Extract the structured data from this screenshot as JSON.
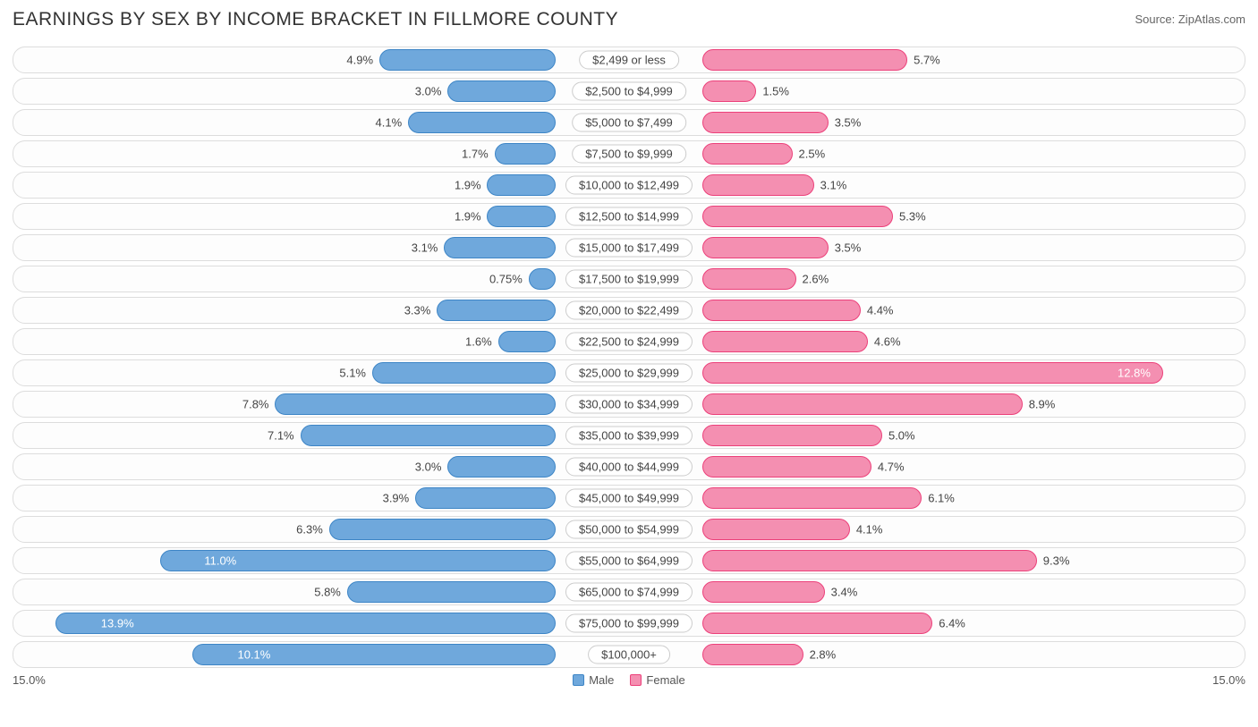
{
  "title": "EARNINGS BY SEX BY INCOME BRACKET IN FILLMORE COUNTY",
  "source": "Source: ZipAtlas.com",
  "axis_max_label": "15.0%",
  "axis_max": 15.0,
  "legend": {
    "male": "Male",
    "female": "Female"
  },
  "colors": {
    "male_fill": "#6fa8dc",
    "male_border": "#3d85c6",
    "female_fill": "#f48fb1",
    "female_border": "#ec407a",
    "row_border": "#dddddd",
    "text": "#444444"
  },
  "rows": [
    {
      "label": "$2,499 or less",
      "male": 4.9,
      "female": 5.7
    },
    {
      "label": "$2,500 to $4,999",
      "male": 3.0,
      "female": 1.5
    },
    {
      "label": "$5,000 to $7,499",
      "male": 4.1,
      "female": 3.5
    },
    {
      "label": "$7,500 to $9,999",
      "male": 1.7,
      "female": 2.5
    },
    {
      "label": "$10,000 to $12,499",
      "male": 1.9,
      "female": 3.1
    },
    {
      "label": "$12,500 to $14,999",
      "male": 1.9,
      "female": 5.3
    },
    {
      "label": "$15,000 to $17,499",
      "male": 3.1,
      "female": 3.5
    },
    {
      "label": "$17,500 to $19,999",
      "male": 0.75,
      "female": 2.6
    },
    {
      "label": "$20,000 to $22,499",
      "male": 3.3,
      "female": 4.4
    },
    {
      "label": "$22,500 to $24,999",
      "male": 1.6,
      "female": 4.6
    },
    {
      "label": "$25,000 to $29,999",
      "male": 5.1,
      "female": 12.8
    },
    {
      "label": "$30,000 to $34,999",
      "male": 7.8,
      "female": 8.9
    },
    {
      "label": "$35,000 to $39,999",
      "male": 7.1,
      "female": 5.0
    },
    {
      "label": "$40,000 to $44,999",
      "male": 3.0,
      "female": 4.7
    },
    {
      "label": "$45,000 to $49,999",
      "male": 3.9,
      "female": 6.1
    },
    {
      "label": "$50,000 to $54,999",
      "male": 6.3,
      "female": 4.1
    },
    {
      "label": "$55,000 to $64,999",
      "male": 11.0,
      "female": 9.3
    },
    {
      "label": "$65,000 to $74,999",
      "male": 5.8,
      "female": 3.4
    },
    {
      "label": "$75,000 to $99,999",
      "male": 13.9,
      "female": 6.4
    },
    {
      "label": "$100,000+",
      "male": 10.1,
      "female": 2.8
    }
  ]
}
